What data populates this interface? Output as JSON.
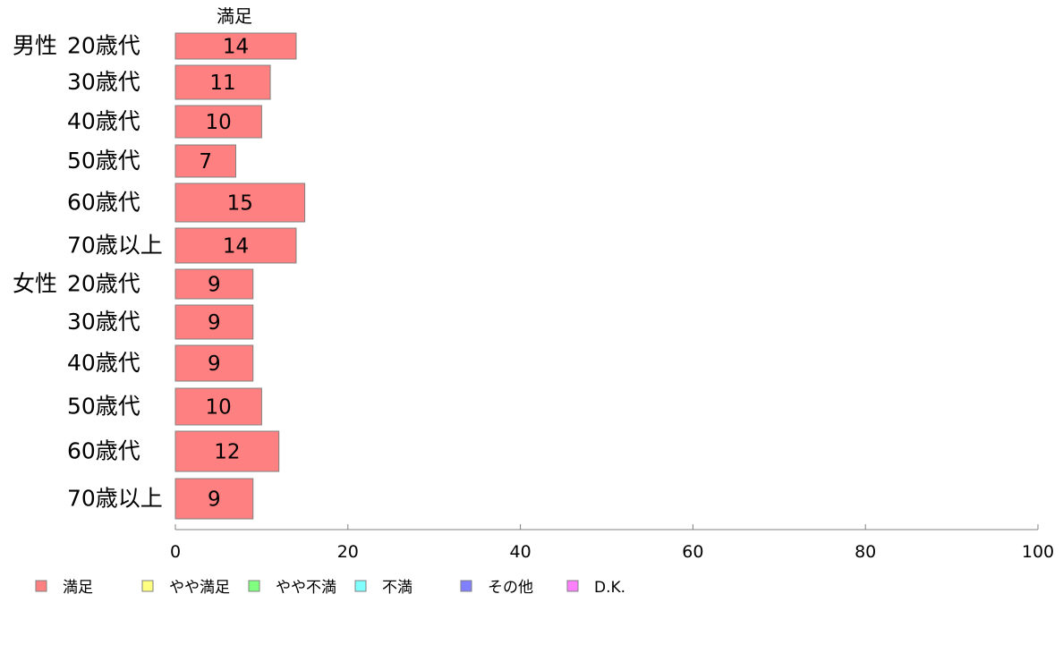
{
  "chart_data": {
    "type": "bar",
    "orientation": "horizontal",
    "stacked": true,
    "column_title": "満足",
    "groups": [
      {
        "label": "男性",
        "categories": [
          "20歳代",
          "30歳代",
          "40歳代",
          "50歳代",
          "60歳代",
          "70歳以上"
        ]
      },
      {
        "label": "女性",
        "categories": [
          "20歳代",
          "30歳代",
          "40歳代",
          "50歳代",
          "60歳代",
          "70歳以上"
        ]
      }
    ],
    "series": [
      {
        "name": "満足",
        "color": "#ff8080",
        "values": [
          14,
          11,
          10,
          7,
          15,
          14,
          9,
          9,
          9,
          10,
          12,
          9
        ]
      }
    ],
    "value_labels": [
      "14",
      "11",
      "10",
      "7",
      "15",
      "14",
      "9",
      "9",
      "9",
      "10",
      "12",
      "9"
    ],
    "x_ticks": [
      "0",
      "20",
      "40",
      "60",
      "80",
      "100"
    ],
    "xlim": [
      0,
      100
    ],
    "legend": [
      {
        "label": "満足",
        "color": "#ff8080"
      },
      {
        "label": "やや満足",
        "color": "#ffff80"
      },
      {
        "label": "やや不満",
        "color": "#80ff80"
      },
      {
        "label": "不満",
        "color": "#80ffff"
      },
      {
        "label": "その他",
        "color": "#8080ff"
      },
      {
        "label": "D.K.",
        "color": "#ff80ff"
      }
    ],
    "legend_position": "bottom-left",
    "grid": false
  }
}
